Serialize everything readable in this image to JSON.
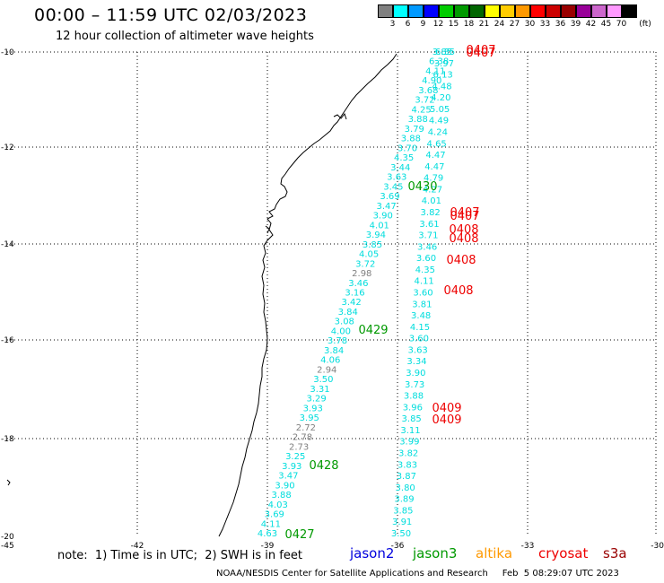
{
  "title": "00:00 – 11:59 UTC 02/03/2023",
  "subtitle": "12 hour collection of altimeter wave heights",
  "legend": {
    "unit": "(ft)",
    "bins": [
      {
        "label": "3",
        "color": "#808080"
      },
      {
        "label": "6",
        "color": "#00ffff"
      },
      {
        "label": "9",
        "color": "#0099ff"
      },
      {
        "label": "12",
        "color": "#0000ff"
      },
      {
        "label": "15",
        "color": "#00cc00"
      },
      {
        "label": "18",
        "color": "#009900"
      },
      {
        "label": "21",
        "color": "#006600"
      },
      {
        "label": "24",
        "color": "#ffff00"
      },
      {
        "label": "27",
        "color": "#ffcc00"
      },
      {
        "label": "30",
        "color": "#ff9900"
      },
      {
        "label": "33",
        "color": "#ff0000"
      },
      {
        "label": "36",
        "color": "#cc0000"
      },
      {
        "label": "39",
        "color": "#990000"
      },
      {
        "label": "42",
        "color": "#990099"
      },
      {
        "label": "45",
        "color": "#cc66cc"
      },
      {
        "label": "70",
        "color": "#ff99ff"
      },
      {
        "label": "",
        "color": "#000000"
      }
    ]
  },
  "axes": {
    "lat_labels": [
      "-10",
      "-12",
      "-14",
      "-16",
      "-18",
      "-20"
    ],
    "lon_labels": [
      "-45",
      "-42",
      "-39",
      "-36",
      "-33",
      "-30"
    ]
  },
  "tracks": {
    "west_track": {
      "color": "#00e5e5",
      "values": [
        "3.85",
        "6.38",
        "4.11",
        "4.90",
        "3.68",
        "3.72",
        "4.25",
        "3.88",
        "3.79",
        "3.88",
        "3.70",
        "4.35",
        "3.44",
        "3.63",
        "3.45",
        "3.69",
        "3.47",
        "3.90",
        "4.01",
        "3.94",
        "3.85",
        "4.05",
        "3.72",
        "2.98",
        "3.46",
        "3.16",
        "3.42",
        "3.84",
        "3.08",
        "4.00",
        "3.78",
        "3.84",
        "4.06",
        "2.94",
        "3.50",
        "3.31",
        "3.29",
        "3.93",
        "3.95",
        "2.72",
        "2.78",
        "2.73",
        "3.25",
        "3.93",
        "3.47",
        "3.90",
        "3.88",
        "4.03",
        "3.69",
        "4.11",
        "4.63"
      ]
    },
    "east_track": {
      "color": "#00e5e5",
      "values": [
        "6.35",
        "3.97",
        "6.13",
        "4.48",
        "4.20",
        "5.05",
        "4.49",
        "4.24",
        "4.65",
        "4.47",
        "4.47",
        "4.79",
        "4.27",
        "4.01",
        "3.82",
        "3.61",
        "3.71",
        "3.46",
        "3.60",
        "4.35",
        "4.11",
        "3.60",
        "3.81",
        "3.48",
        "4.15",
        "3.60",
        "3.63",
        "3.34",
        "3.90",
        "3.73",
        "3.88",
        "3.96",
        "3.85",
        "3.11",
        "3.99",
        "3.82",
        "3.83",
        "3.87",
        "3.80",
        "3.89",
        "3.85",
        "3.91",
        "3.50"
      ]
    },
    "grey_values": [
      "2.98",
      "2.94",
      "2.72",
      "2.78",
      "2.73"
    ],
    "time_labels": [
      {
        "text": "0407",
        "sat": "cryosat"
      },
      {
        "text": "0407",
        "sat": "cryosat"
      },
      {
        "text": "0430",
        "sat": "jason3"
      },
      {
        "text": "0407",
        "sat": "cryosat"
      },
      {
        "text": "0407",
        "sat": "cryosat"
      },
      {
        "text": "0408",
        "sat": "cryosat"
      },
      {
        "text": "0408",
        "sat": "cryosat"
      },
      {
        "text": "0408",
        "sat": "cryosat"
      },
      {
        "text": "0408",
        "sat": "cryosat"
      },
      {
        "text": "0429",
        "sat": "jason3"
      },
      {
        "text": "0409",
        "sat": "cryosat"
      },
      {
        "text": "0409",
        "sat": "cryosat"
      },
      {
        "text": "0428",
        "sat": "jason3"
      },
      {
        "text": "0427",
        "sat": "jason3"
      }
    ]
  },
  "note": "note:  1) Time is in UTC;  2) SWH is in feet",
  "satellites": [
    {
      "name": "jason2",
      "color": "#0000dd"
    },
    {
      "name": "jason3",
      "color": "#009900"
    },
    {
      "name": "altika",
      "color": "#ff9900"
    },
    {
      "name": "cryosat",
      "color": "#ee0000"
    },
    {
      "name": "s3a",
      "color": "#990000"
    }
  ],
  "footer": "NOAA/NESDIS Center for Satellite Applications and Research     Feb  5 08:29:07 UTC 2023"
}
